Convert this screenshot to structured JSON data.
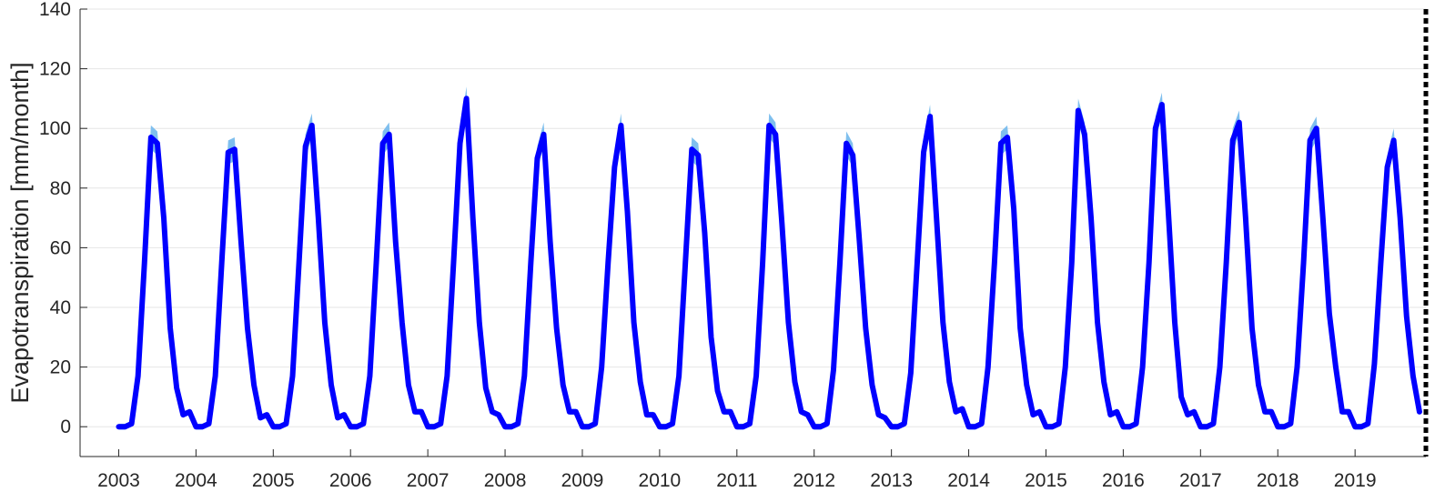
{
  "chart_data": {
    "type": "line",
    "title": "",
    "xlabel": "",
    "ylabel": "Evapotranspiration [mm/month]",
    "xlim": [
      "2002-07",
      "2019-12"
    ],
    "ylim": [
      -10,
      140
    ],
    "x_ticks": [
      "2003",
      "2004",
      "2005",
      "2006",
      "2007",
      "2008",
      "2009",
      "2010",
      "2011",
      "2012",
      "2013",
      "2014",
      "2015",
      "2016",
      "2017",
      "2018",
      "2019"
    ],
    "y_ticks": [
      0,
      20,
      40,
      60,
      80,
      100,
      120,
      140
    ],
    "grid": {
      "x": false,
      "y": true
    },
    "colors": {
      "line": "#0000ff",
      "band": "#7fbfee",
      "grid": "#e6e6e6",
      "axis": "#262626",
      "dashed_marker": "#000000"
    },
    "vertical_marker": {
      "x": "2019-12",
      "style": "dotted"
    },
    "series": [
      {
        "x_start": "2003-01",
        "frequency": "monthly",
        "values": [
          0,
          0,
          1,
          17,
          55,
          97,
          95,
          70,
          33,
          13,
          4,
          5,
          0,
          0,
          1,
          17,
          55,
          92,
          93,
          62,
          33,
          14,
          3,
          4,
          0,
          0,
          1,
          17,
          55,
          94,
          101,
          70,
          35,
          14,
          3,
          4,
          0,
          0,
          1,
          17,
          55,
          95,
          98,
          62,
          35,
          14,
          5,
          5,
          0,
          0,
          1,
          17,
          55,
          95,
          110,
          70,
          35,
          13,
          5,
          4,
          0,
          0,
          1,
          17,
          55,
          90,
          98,
          62,
          33,
          14,
          5,
          5,
          0,
          0,
          1,
          20,
          55,
          87,
          101,
          72,
          35,
          15,
          4,
          4,
          0,
          0,
          1,
          17,
          55,
          93,
          91,
          65,
          30,
          12,
          5,
          5,
          0,
          0,
          1,
          17,
          55,
          101,
          98,
          68,
          35,
          15,
          5,
          4,
          0,
          0,
          1,
          19,
          55,
          95,
          91,
          63,
          33,
          14,
          4,
          3,
          0,
          0,
          1,
          18,
          55,
          92,
          104,
          70,
          35,
          15,
          5,
          6,
          0,
          0,
          1,
          20,
          55,
          95,
          97,
          73,
          33,
          14,
          4,
          5,
          0,
          0,
          1,
          20,
          55,
          106,
          98,
          70,
          35,
          15,
          4,
          5,
          0,
          0,
          1,
          20,
          55,
          100,
          108,
          72,
          35,
          10,
          4,
          5,
          0,
          0,
          1,
          20,
          55,
          96,
          102,
          70,
          33,
          14,
          5,
          5,
          0,
          0,
          1,
          20,
          55,
          96,
          100,
          70,
          38,
          20,
          5,
          5,
          0,
          0,
          1,
          21,
          55,
          87,
          96,
          70,
          37,
          17,
          5
        ],
        "uncertainty": 4
      }
    ]
  }
}
